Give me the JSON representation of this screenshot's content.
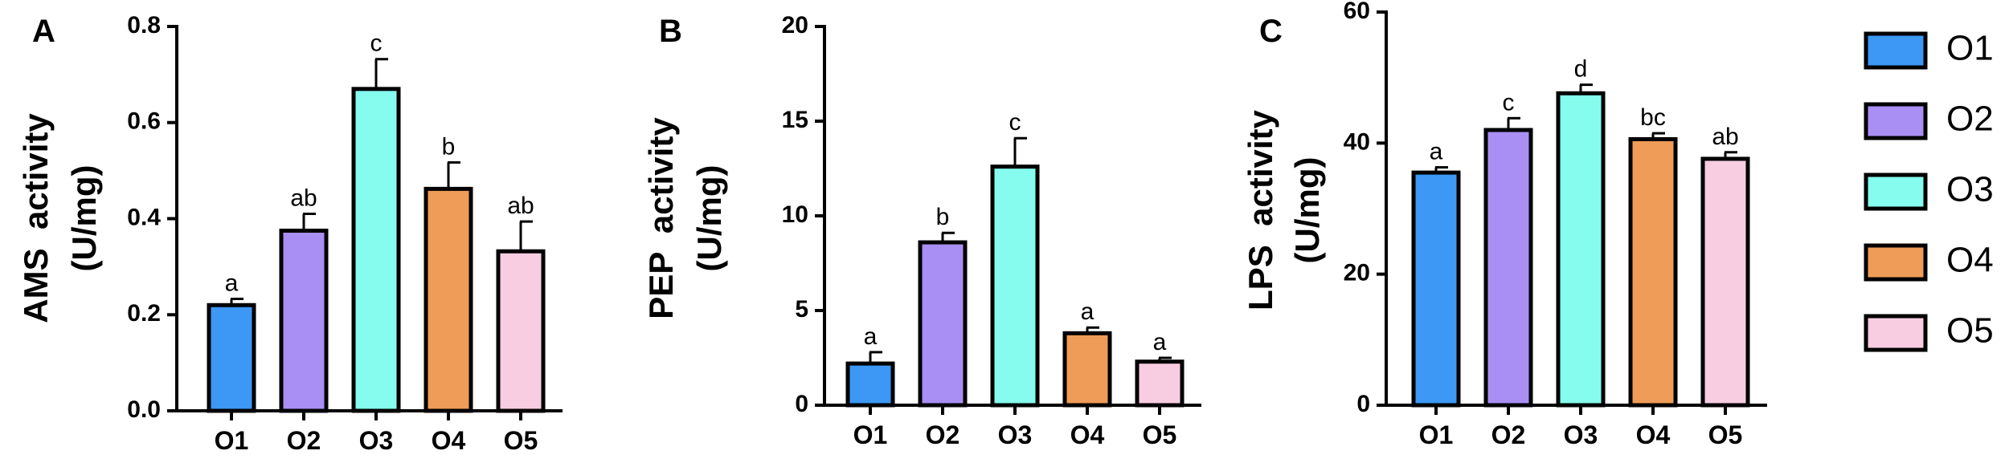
{
  "chart_data": [
    {
      "type": "bar",
      "panel": "A",
      "title": "",
      "xlabel": "",
      "ylabel": "AMS  activity (U/mg)",
      "ylabel_lines": [
        "AMS  activity",
        "(U/mg)"
      ],
      "categories": [
        "O1",
        "O2",
        "O3",
        "O4",
        "O5"
      ],
      "values": [
        0.22,
        0.375,
        0.67,
        0.462,
        0.332
      ],
      "errors": [
        0.013,
        0.035,
        0.062,
        0.055,
        0.062
      ],
      "significance": [
        "a",
        "ab",
        "c",
        "b",
        "ab"
      ],
      "ylim": [
        0,
        0.8
      ],
      "yticks": [
        0.0,
        0.2,
        0.4,
        0.6,
        0.8
      ],
      "ytick_labels": [
        "0.0",
        "0.2",
        "0.4",
        "0.6",
        "0.8"
      ],
      "grid": false
    },
    {
      "type": "bar",
      "panel": "B",
      "title": "",
      "xlabel": "",
      "ylabel": "PEP  activity (U/mg)",
      "ylabel_lines": [
        "PEP  activity",
        "(U/mg)"
      ],
      "categories": [
        "O1",
        "O2",
        "O3",
        "O4",
        "O5"
      ],
      "values": [
        2.2,
        8.6,
        12.6,
        3.8,
        2.3
      ],
      "errors": [
        0.6,
        0.5,
        1.5,
        0.3,
        0.2
      ],
      "significance": [
        "a",
        "b",
        "c",
        "a",
        "a"
      ],
      "ylim": [
        0,
        20
      ],
      "yticks": [
        0,
        5,
        10,
        15,
        20
      ],
      "ytick_labels": [
        "0",
        "5",
        "10",
        "15",
        "20"
      ],
      "grid": false
    },
    {
      "type": "bar",
      "panel": "C",
      "title": "",
      "xlabel": "",
      "ylabel": "LPS  activity (U/mg)",
      "ylabel_lines": [
        "LPS  activity",
        "(U/mg)"
      ],
      "categories": [
        "O1",
        "O2",
        "O3",
        "O4",
        "O5"
      ],
      "values": [
        35.5,
        42.0,
        47.6,
        40.6,
        37.6
      ],
      "errors": [
        0.8,
        1.8,
        1.3,
        0.9,
        1.0
      ],
      "significance": [
        "a",
        "c",
        "d",
        "bc",
        "ab"
      ],
      "ylim": [
        0,
        60
      ],
      "yticks": [
        0,
        20,
        40,
        60
      ],
      "ytick_labels": [
        "0",
        "20",
        "40",
        "60"
      ],
      "grid": false
    }
  ],
  "legend": {
    "placement": "right",
    "items": [
      {
        "label": "O1",
        "color": "#3d97f4"
      },
      {
        "label": "O2",
        "color": "#a98ff3"
      },
      {
        "label": "O3",
        "color": "#86fcee"
      },
      {
        "label": "O4",
        "color": "#ee9c57"
      },
      {
        "label": "O5",
        "color": "#f8cde1"
      }
    ]
  }
}
